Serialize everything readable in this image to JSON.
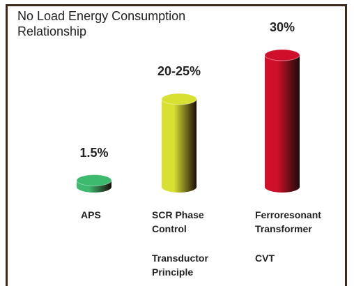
{
  "chart_data": {
    "type": "cylinder-bar",
    "title": "No Load Energy Consumption Relationship",
    "categories": [
      "APS",
      "SCR Phase Control",
      "Ferroresonant Transformer"
    ],
    "subcategories": [
      null,
      "Transductor Principle",
      "CVT"
    ],
    "values": [
      1.5,
      20,
      30
    ],
    "value_labels": [
      "1.5%",
      "20-25%",
      "30%"
    ],
    "colors": [
      "#3dba6e",
      "#d8e032",
      "#d0102a"
    ]
  }
}
